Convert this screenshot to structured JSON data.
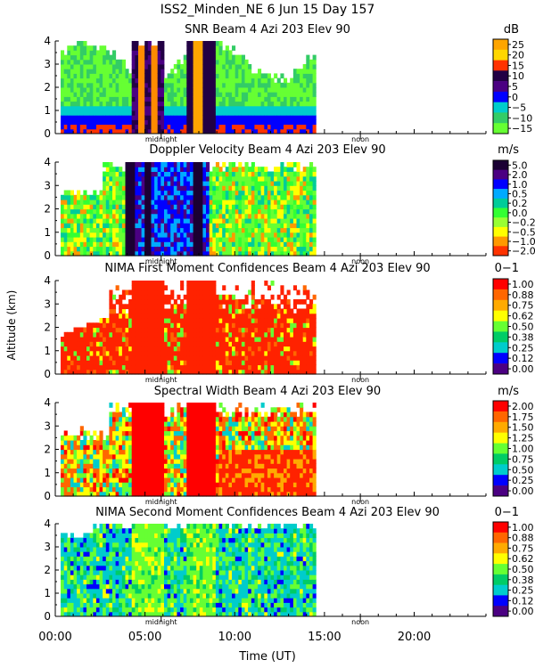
{
  "figure": {
    "title": "ISS2_Minden_NE    6 Jun 15 Day 157",
    "ylabel": "Altitude (km)",
    "xlabel": "Time (UT)",
    "x_ticks": [
      "00:00",
      "05:00",
      "10:00",
      "15:00",
      "20:00"
    ],
    "midnight_label": "midnight",
    "noon_label": "noon"
  },
  "chart_data": [
    {
      "type": "heatmap",
      "title": "SNR Beam 4 Azi 203 Elev 90",
      "unit": "dB",
      "xlim": [
        0,
        24
      ],
      "ylim": [
        0,
        4
      ],
      "y_ticks": [
        "0",
        "1",
        "2",
        "3",
        "4"
      ],
      "colorbar_labels": [
        "25",
        "20",
        "15",
        "10",
        "5",
        "0",
        "−5",
        "−10",
        "−15"
      ],
      "colorbar_colors": [
        "#ffa500",
        "#ffd700",
        "#ff3300",
        "#220044",
        "#4b0082",
        "#0000ff",
        "#00cccc",
        "#33cc66",
        "#66ff33"
      ]
    },
    {
      "type": "heatmap",
      "title": "Doppler Velocity Beam 4 Azi 203 Elev 90",
      "unit": "m/s",
      "xlim": [
        0,
        24
      ],
      "ylim": [
        0,
        4
      ],
      "y_ticks": [
        "0",
        "1",
        "2",
        "3",
        "4"
      ],
      "colorbar_labels": [
        "5.0",
        "2.0",
        "1.0",
        "0.5",
        "0.2",
        "0.0",
        "−0.2",
        "−0.5",
        "−1.0",
        "−2.0"
      ],
      "colorbar_colors": [
        "#1a0033",
        "#4b0082",
        "#0000ff",
        "#00aaff",
        "#00cc99",
        "#33ff33",
        "#99ff33",
        "#ffff00",
        "#ff9900",
        "#ff3300"
      ]
    },
    {
      "type": "heatmap",
      "title": "NIMA First Moment Confidences Beam 4 Azi 203 Elev 90",
      "unit": "0−1",
      "xlim": [
        0,
        24
      ],
      "ylim": [
        0,
        4
      ],
      "y_ticks": [
        "0",
        "1",
        "2",
        "3",
        "4"
      ],
      "colorbar_labels": [
        "1.00",
        "0.88",
        "0.75",
        "0.62",
        "0.50",
        "0.38",
        "0.25",
        "0.12",
        "0.00"
      ],
      "colorbar_colors": [
        "#ff0000",
        "#ff6600",
        "#ffaa00",
        "#ffff00",
        "#66ff33",
        "#00cc66",
        "#00cccc",
        "#0000ff",
        "#4b0082"
      ]
    },
    {
      "type": "heatmap",
      "title": "Spectral Width Beam 4 Azi 203 Elev 90",
      "unit": "m/s",
      "xlim": [
        0,
        24
      ],
      "ylim": [
        0,
        4
      ],
      "y_ticks": [
        "0",
        "1",
        "2",
        "3",
        "4"
      ],
      "colorbar_labels": [
        "2.00",
        "1.75",
        "1.50",
        "1.25",
        "1.00",
        "0.75",
        "0.50",
        "0.25",
        "0.00"
      ],
      "colorbar_colors": [
        "#ff0000",
        "#ff6600",
        "#ffaa00",
        "#ffff00",
        "#66ff33",
        "#00cc66",
        "#00cccc",
        "#0000ff",
        "#4b0082"
      ]
    },
    {
      "type": "heatmap",
      "title": "NIMA Second Moment Confidences Beam 4 Azi 203 Elev 90",
      "unit": "0−1",
      "xlim": [
        0,
        24
      ],
      "ylim": [
        0,
        4
      ],
      "y_ticks": [
        "0",
        "1",
        "2",
        "3",
        "4"
      ],
      "colorbar_labels": [
        "1.00",
        "0.88",
        "0.75",
        "0.62",
        "0.50",
        "0.38",
        "0.25",
        "0.12",
        "0.00"
      ],
      "colorbar_colors": [
        "#ff0000",
        "#ff6600",
        "#ffaa00",
        "#ffff00",
        "#66ff33",
        "#00cc66",
        "#00cccc",
        "#0000ff",
        "#4b0082"
      ]
    }
  ]
}
